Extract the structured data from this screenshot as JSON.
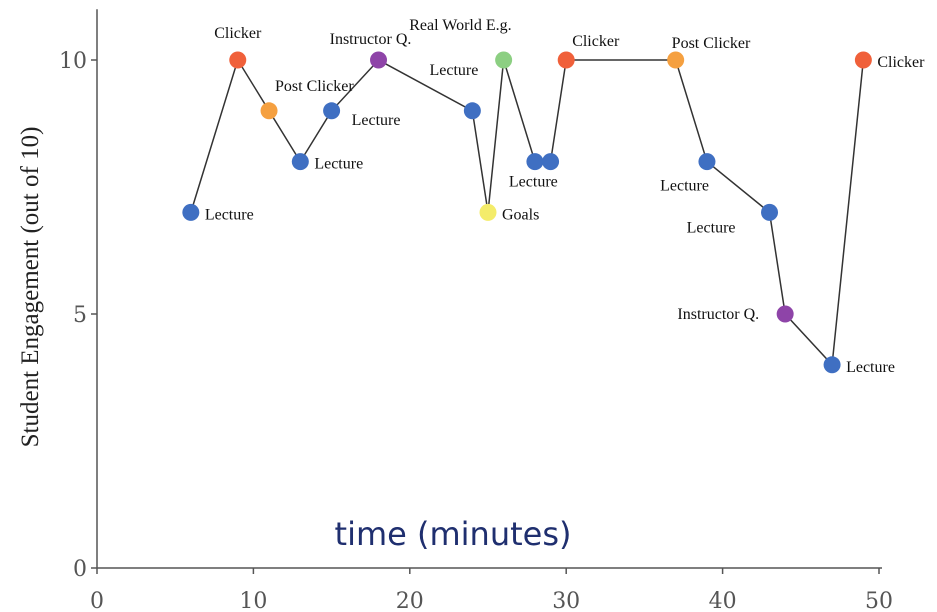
{
  "chart_data": {
    "type": "line",
    "title": "",
    "xlabel": "time (minutes)",
    "ylabel": "Student Engagement (out of 10)",
    "xlim": [
      0,
      50
    ],
    "ylim": [
      0,
      11
    ],
    "x_ticks": [
      "0",
      "10",
      "20",
      "30",
      "40",
      "50"
    ],
    "y_ticks": [
      "0",
      "5",
      "10"
    ],
    "grid": false,
    "legend": "none",
    "category_colors": {
      "Lecture": "#3f6fc2",
      "Clicker": "#f0603a",
      "Post Clicker": "#f5a040",
      "Instructor Q.": "#8e44a8",
      "Real World E.g.": "#8ccf82",
      "Goals": "#f4ec6a"
    },
    "points": [
      {
        "x": 6,
        "y": 7,
        "label": "Lecture"
      },
      {
        "x": 9,
        "y": 10,
        "label": "Clicker"
      },
      {
        "x": 11,
        "y": 9,
        "label": "Post Clicker"
      },
      {
        "x": 13,
        "y": 8,
        "label": "Lecture"
      },
      {
        "x": 15,
        "y": 9,
        "label": "Lecture"
      },
      {
        "x": 18,
        "y": 10,
        "label": "Instructor Q."
      },
      {
        "x": 24,
        "y": 9,
        "label": "Lecture"
      },
      {
        "x": 25,
        "y": 7,
        "label": "Goals"
      },
      {
        "x": 26,
        "y": 10,
        "label": "Real World E.g."
      },
      {
        "x": 28,
        "y": 8,
        "label": "Lecture"
      },
      {
        "x": 29,
        "y": 8,
        "label": ""
      },
      {
        "x": 30,
        "y": 10,
        "label": "Clicker"
      },
      {
        "x": 37,
        "y": 10,
        "label": "Post Clicker"
      },
      {
        "x": 39,
        "y": 8,
        "label": "Lecture"
      },
      {
        "x": 43,
        "y": 7,
        "label": "Lecture"
      },
      {
        "x": 44,
        "y": 5,
        "label": "Instructor Q."
      },
      {
        "x": 47,
        "y": 4,
        "label": "Lecture"
      },
      {
        "x": 49,
        "y": 10,
        "label": "Clicker"
      }
    ]
  }
}
